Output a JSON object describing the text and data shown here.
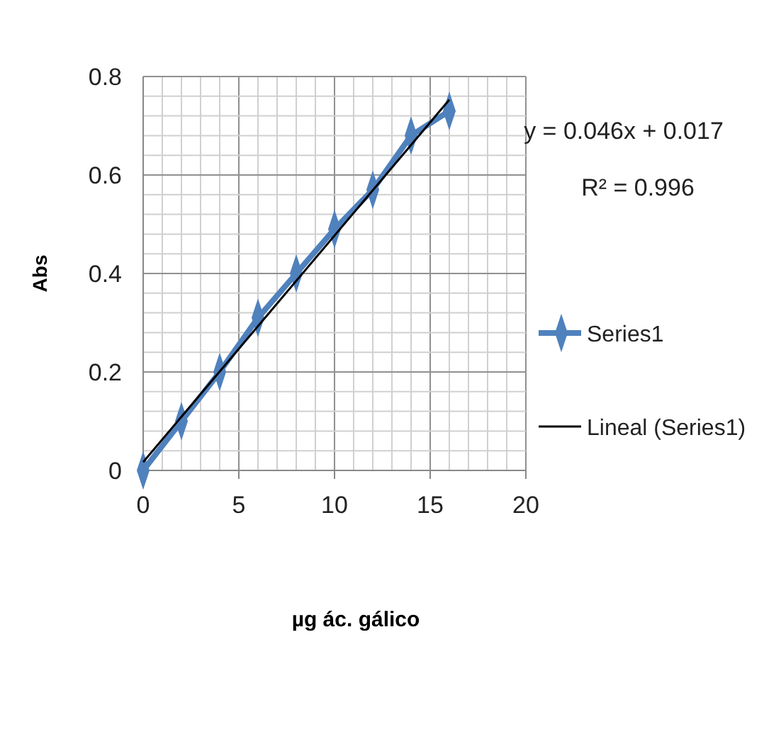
{
  "chart_data": {
    "type": "line",
    "xlabel": "µg ác. gálico",
    "ylabel": "Abs",
    "xlim": [
      0,
      20
    ],
    "ylim": [
      0,
      0.8
    ],
    "xticks": [
      0,
      {
        "value": 1,
        "label": null
      },
      {
        "value": 2,
        "label": null
      },
      {
        "value": 3,
        "label": null
      },
      {
        "value": 4,
        "label": null
      },
      5,
      {
        "value": 6,
        "label": null
      },
      {
        "value": 7,
        "label": null
      },
      {
        "value": 8,
        "label": null
      },
      {
        "value": 9,
        "label": null
      },
      10,
      {
        "value": 11,
        "label": null
      },
      {
        "value": 12,
        "label": null
      },
      {
        "value": 13,
        "label": null
      },
      {
        "value": 14,
        "label": null
      },
      15,
      {
        "value": 16,
        "label": null
      },
      {
        "value": 17,
        "label": null
      },
      {
        "value": 18,
        "label": null
      },
      {
        "value": 19,
        "label": null
      },
      20
    ],
    "yticks": [
      0,
      {
        "value": 0.04,
        "label": null
      },
      {
        "value": 0.08,
        "label": null
      },
      {
        "value": 0.12,
        "label": null
      },
      {
        "value": 0.16,
        "label": null
      },
      0.2,
      {
        "value": 0.24,
        "label": null
      },
      {
        "value": 0.28,
        "label": null
      },
      {
        "value": 0.32,
        "label": null
      },
      {
        "value": 0.36,
        "label": null
      },
      0.4,
      {
        "value": 0.44,
        "label": null
      },
      {
        "value": 0.48,
        "label": null
      },
      {
        "value": 0.52,
        "label": null
      },
      {
        "value": 0.56,
        "label": null
      },
      0.6,
      {
        "value": 0.64,
        "label": null
      },
      {
        "value": 0.68,
        "label": null
      },
      {
        "value": 0.72,
        "label": null
      },
      {
        "value": 0.76,
        "label": null
      },
      0.8
    ],
    "grid": true,
    "legend": "right",
    "annotations": [
      "y = 0.046x + 0.017",
      "R² = 0.996"
    ],
    "series": [
      {
        "name": "Series1",
        "color": "#4f81bd",
        "marker": "diamond",
        "x": [
          0,
          2,
          4,
          6,
          8,
          10,
          12,
          14,
          16
        ],
        "values": [
          0,
          0.1,
          0.2,
          0.31,
          0.4,
          0.49,
          0.57,
          0.68,
          0.73
        ]
      },
      {
        "name": "Lineal (Series1)",
        "color": "#000000",
        "marker": "none",
        "x": [
          0,
          16
        ],
        "values": [
          0.017,
          0.753
        ]
      }
    ]
  }
}
